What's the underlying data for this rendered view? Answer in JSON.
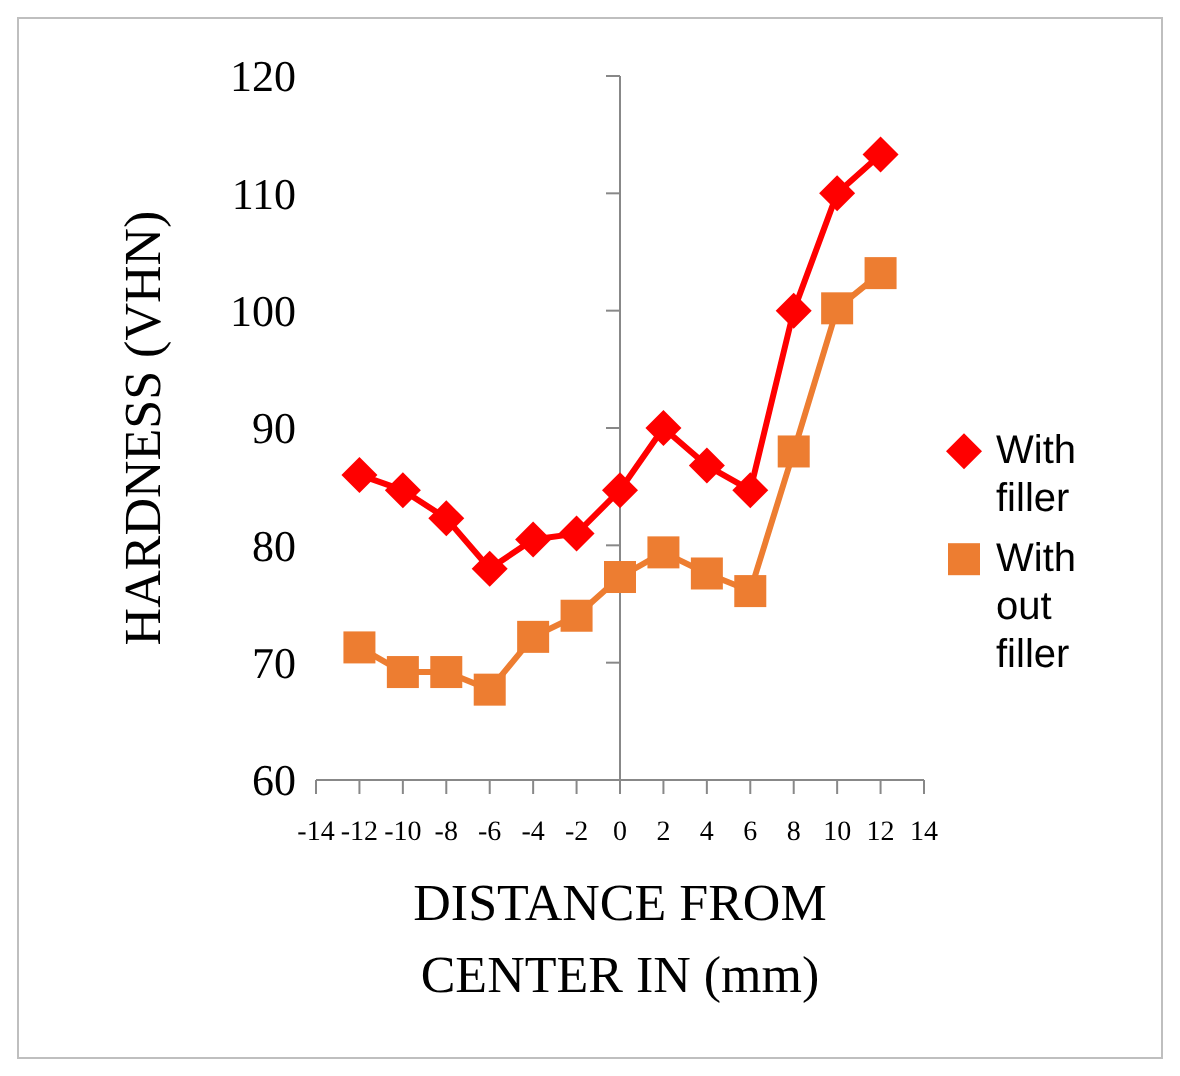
{
  "chart_data": {
    "type": "line",
    "xlabel": "DISTANCE FROM CENTER IN (mm)",
    "ylabel": "HARDNESS (VHN)",
    "x": [
      -12,
      -10,
      -8,
      -6,
      -4,
      -2,
      0,
      2,
      4,
      6,
      8,
      10,
      12
    ],
    "series": [
      {
        "name": "With filler",
        "color": "#ff0000",
        "marker": "diamond",
        "values": [
          86,
          84.7,
          82.3,
          78,
          80.5,
          81,
          84.7,
          90,
          86.8,
          84.7,
          100,
          110,
          113.3
        ]
      },
      {
        "name": "With out filler",
        "color": "#ed7d31",
        "marker": "square",
        "values": [
          71.3,
          69.2,
          69.2,
          67.7,
          72.2,
          74,
          77.3,
          79.4,
          77.6,
          76.1,
          88,
          100.2,
          103.2
        ]
      }
    ],
    "xlim": [
      -14,
      14
    ],
    "xticks": [
      -14,
      -12,
      -10,
      -8,
      -6,
      -4,
      -2,
      0,
      2,
      4,
      6,
      8,
      10,
      12,
      14
    ],
    "ylim": [
      60,
      120
    ],
    "yticks": [
      60,
      70,
      80,
      90,
      100,
      110,
      120
    ],
    "legend": "right"
  }
}
